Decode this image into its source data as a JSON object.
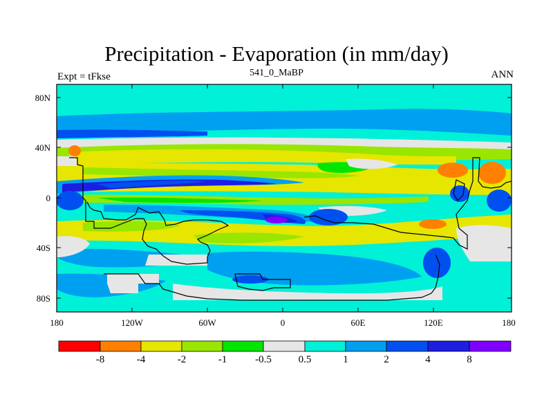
{
  "title": "Precipitation - Evaporation (in mm/day)",
  "subtitle": "541_0_MaBP",
  "left_label": "Expt = tFkse",
  "right_label": "ANN",
  "y_ticks": [
    "80N",
    "40N",
    "0",
    "40S",
    "80S"
  ],
  "x_ticks": [
    "180",
    "120W",
    "60W",
    "0",
    "60E",
    "120E",
    "180"
  ],
  "colorbar": {
    "labels": [
      "-8",
      "-4",
      "-2",
      "-1",
      "-0.5",
      "0.5",
      "1",
      "2",
      "4",
      "8"
    ],
    "colors": [
      "#ff0000",
      "#ff8000",
      "#e6e600",
      "#99e600",
      "#00e600",
      "#e6e6e6",
      "#00f0d8",
      "#00a0f0",
      "#0050f0",
      "#1e1ee0",
      "#8000ff"
    ]
  },
  "palette": {
    "ocean_base": "#00f0d8",
    "dry_land": "#e6e6e6",
    "very_dry": "#ff8000",
    "dry": "#e6e600",
    "moderate_dry": "#99e600",
    "slight_dry": "#00e600",
    "wet": "#00a0f0",
    "wetter": "#0050f0",
    "very_wet": "#1e1ee0",
    "extreme_wet": "#8000ff"
  }
}
